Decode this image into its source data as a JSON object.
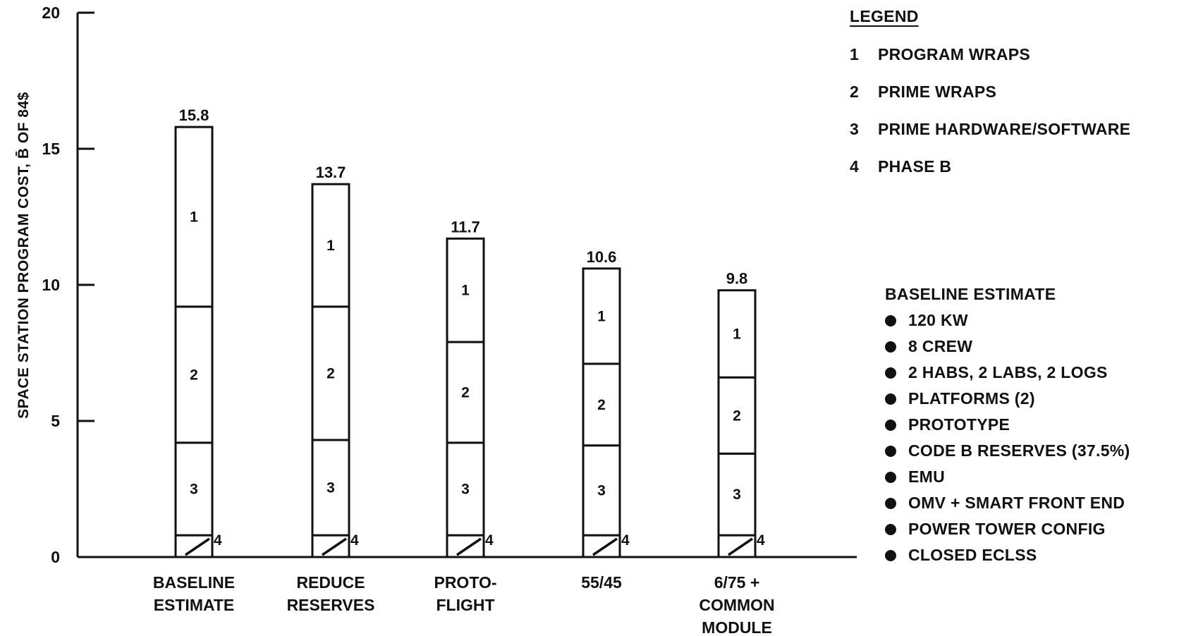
{
  "legend": {
    "title": "LEGEND",
    "items": [
      {
        "key": "1",
        "label": "PROGRAM WRAPS"
      },
      {
        "key": "2",
        "label": "PRIME WRAPS"
      },
      {
        "key": "3",
        "label": "PRIME HARDWARE/SOFTWARE"
      },
      {
        "key": "4",
        "label": "PHASE B"
      }
    ]
  },
  "baseline_notes": {
    "title": "BASELINE ESTIMATE",
    "items": [
      "120 KW",
      "8 CREW",
      "2 HABS, 2 LABS, 2 LOGS",
      "PLATFORMS (2)",
      "PROTOTYPE",
      "CODE B RESERVES (37.5%)",
      "EMU",
      "OMV + SMART FRONT END",
      "POWER TOWER CONFIG",
      "CLOSED ECLSS"
    ]
  },
  "chart_data": {
    "type": "bar",
    "stacked": true,
    "ylabel": "SPACE STATION PROGRAM COST, B̄ OF 84$",
    "xlabel": "",
    "ylim": [
      0,
      20
    ],
    "yticks": [
      0,
      5,
      10,
      15,
      20
    ],
    "grid": false,
    "legend_position": "right",
    "categories": [
      [
        "BASELINE",
        "ESTIMATE"
      ],
      [
        "REDUCE",
        "RESERVES"
      ],
      [
        "PROTO-",
        "FLIGHT"
      ],
      [
        "55/45"
      ],
      [
        "6/75 +",
        "COMMON",
        "MODULE"
      ]
    ],
    "series": [
      {
        "name": "4",
        "values": [
          0.8,
          0.8,
          0.8,
          0.8,
          0.8
        ]
      },
      {
        "name": "3",
        "values": [
          3.4,
          3.5,
          3.4,
          3.3,
          3.0
        ]
      },
      {
        "name": "2",
        "values": [
          5.0,
          4.9,
          3.7,
          3.0,
          2.8
        ]
      },
      {
        "name": "1",
        "values": [
          6.6,
          4.5,
          3.8,
          3.5,
          3.2
        ]
      }
    ],
    "totals": [
      "15.8",
      "13.7",
      "11.7",
      "10.6",
      "9.8"
    ]
  }
}
